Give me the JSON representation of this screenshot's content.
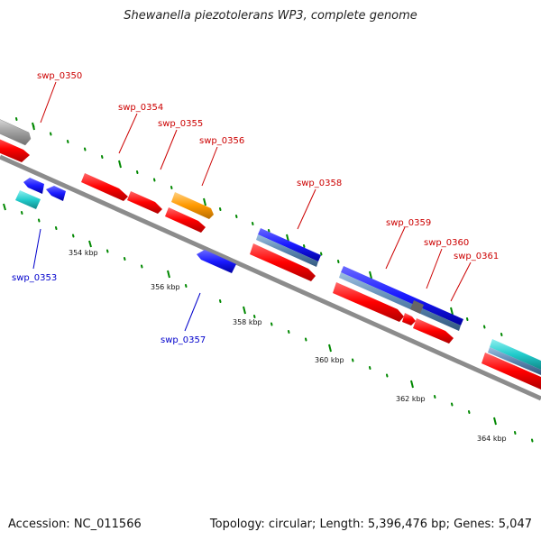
{
  "title": "Shewanella piezotolerans WP3, complete genome",
  "footer": {
    "accession": "Accession: NC_011566",
    "topology": "Topology: circular; Length: 5,396,476 bp; Genes: 5,047"
  },
  "scale_labels": [
    "354 kbp",
    "356 kbp",
    "358 kbp",
    "360 kbp",
    "362 kbp",
    "364 kbp"
  ],
  "colors": {
    "red": "#ff0000",
    "blue": "#1a1aff",
    "steel": "#5b86b0",
    "cyan": "#22cccc",
    "orange": "#ff9900",
    "gray": "#a6a6a6",
    "dark_gray": "#555555",
    "backbone": "#8c8c8c",
    "tick_green": "#008800",
    "label_red": "#cc0000",
    "label_blue": "#0000cc"
  },
  "gene_labels": [
    {
      "name": "swp_0350",
      "color": "red"
    },
    {
      "name": "swp_0354",
      "color": "red"
    },
    {
      "name": "swp_0355",
      "color": "red"
    },
    {
      "name": "swp_0356",
      "color": "red"
    },
    {
      "name": "swp_0358",
      "color": "red"
    },
    {
      "name": "swp_0359",
      "color": "red"
    },
    {
      "name": "swp_0360",
      "color": "red"
    },
    {
      "name": "swp_0361",
      "color": "red"
    },
    {
      "name": "swp_0353",
      "color": "blue"
    },
    {
      "name": "swp_0357",
      "color": "blue"
    }
  ]
}
